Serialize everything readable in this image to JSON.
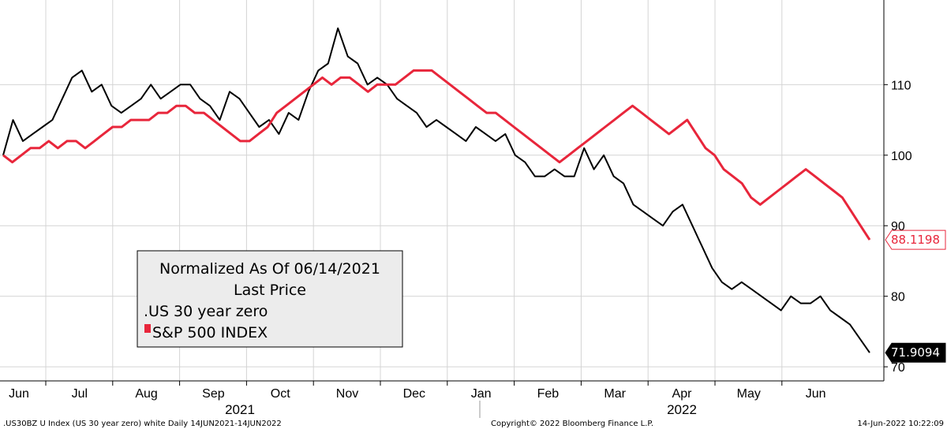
{
  "chart_data": {
    "type": "line",
    "ylim": [
      68,
      122
    ],
    "yticks": [
      70,
      80,
      90,
      100,
      110
    ],
    "months": [
      "Jun",
      "Jul",
      "Aug",
      "Sep",
      "Oct",
      "Nov",
      "Dec",
      "Jan",
      "Feb",
      "Mar",
      "Apr",
      "May",
      "Jun"
    ],
    "years": [
      "2021",
      "2022"
    ],
    "grid": true,
    "legend_position": "bottom-left",
    "legend": {
      "title_line1": "Normalized As Of 06/14/2021",
      "title_line2": "Last Price"
    },
    "series": [
      {
        "name": "US 30 year zero",
        "legend_label": ".US 30 year zero",
        "color": "#000000",
        "last_value_label": "71.9094",
        "values": [
          100,
          105,
          102,
          103,
          104,
          105,
          108,
          111,
          112,
          109,
          110,
          107,
          106,
          107,
          108,
          110,
          108,
          109,
          110,
          110,
          108,
          107,
          105,
          109,
          108,
          106,
          104,
          105,
          103,
          106,
          105,
          109,
          112,
          113,
          118,
          114,
          113,
          110,
          111,
          110,
          108,
          107,
          106,
          104,
          105,
          104,
          103,
          102,
          104,
          103,
          102,
          103,
          100,
          99,
          97,
          97,
          98,
          97,
          97,
          101,
          98,
          100,
          97,
          96,
          93,
          92,
          91,
          90,
          92,
          93,
          90,
          87,
          84,
          82,
          81,
          82,
          81,
          80,
          79,
          78,
          80,
          79,
          79,
          80,
          78,
          77,
          76,
          74,
          72
        ]
      },
      {
        "name": "S&P 500 INDEX",
        "legend_label": "S&P 500 INDEX",
        "color": "#e8263b",
        "last_value_label": "88.1198",
        "values": [
          100,
          99,
          100,
          101,
          101,
          102,
          101,
          102,
          102,
          101,
          102,
          103,
          104,
          104,
          105,
          105,
          105,
          106,
          106,
          107,
          107,
          106,
          106,
          105,
          104,
          103,
          102,
          102,
          103,
          104,
          106,
          107,
          108,
          109,
          110,
          111,
          110,
          111,
          111,
          110,
          109,
          110,
          110,
          110,
          111,
          112,
          112,
          112,
          111,
          110,
          109,
          108,
          107,
          106,
          106,
          105,
          104,
          103,
          102,
          101,
          100,
          99,
          100,
          101,
          102,
          103,
          104,
          105,
          106,
          107,
          106,
          105,
          104,
          103,
          104,
          105,
          103,
          101,
          100,
          98,
          97,
          96,
          94,
          93,
          94,
          95,
          96,
          97,
          98,
          97,
          96,
          95,
          94,
          92,
          90,
          88
        ]
      }
    ]
  },
  "footer": {
    "left": ".US30BZ U Index (US 30 year zero) white  Daily 14JUN2021-14JUN2022",
    "center": "Copyright© 2022 Bloomberg Finance L.P.",
    "right": "14-Jun-2022 10:22:09"
  }
}
